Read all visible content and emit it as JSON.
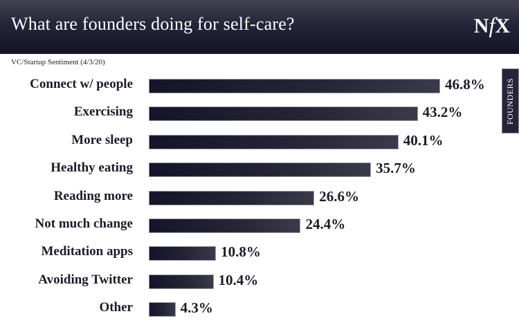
{
  "header": {
    "title": "What are founders doing for self-care?",
    "logo": {
      "n": "N",
      "f": "f",
      "x": "X"
    }
  },
  "subtitle": "VC/Startup Sentiment (4/3/20)",
  "side_tag": "FOUNDERS",
  "colors": {
    "header_dark": "#141428",
    "bar": "#1b1b2e",
    "text": "#1b1b2a"
  },
  "rows": [
    {
      "label": "Connect w/ people",
      "value": "46.8%",
      "num": 46.8
    },
    {
      "label": "Exercising",
      "value": "43.2%",
      "num": 43.2
    },
    {
      "label": "More sleep",
      "value": "40.1%",
      "num": 40.1
    },
    {
      "label": "Healthy eating",
      "value": "35.7%",
      "num": 35.7
    },
    {
      "label": "Reading more",
      "value": "26.6%",
      "num": 26.6
    },
    {
      "label": "Not much change",
      "value": "24.4%",
      "num": 24.4
    },
    {
      "label": "Meditation apps",
      "value": "10.8%",
      "num": 10.8
    },
    {
      "label": "Avoiding Twitter",
      "value": "10.4%",
      "num": 10.4
    },
    {
      "label": "Other",
      "value": "4.3%",
      "num": 4.3
    }
  ],
  "chart_data": {
    "type": "bar",
    "orientation": "horizontal",
    "title": "What are founders doing for self-care?",
    "subtitle": "VC/Startup Sentiment (4/3/20)",
    "categories": [
      "Connect w/ people",
      "Exercising",
      "More sleep",
      "Healthy eating",
      "Reading more",
      "Not much change",
      "Meditation apps",
      "Avoiding Twitter",
      "Other"
    ],
    "values": [
      46.8,
      43.2,
      40.1,
      35.7,
      26.6,
      24.4,
      10.8,
      10.4,
      4.3
    ],
    "value_labels": [
      "46.8%",
      "43.2%",
      "40.1%",
      "35.7%",
      "26.6%",
      "24.4%",
      "10.8%",
      "10.4%",
      "4.3%"
    ],
    "xlabel": "",
    "ylabel": "",
    "unit": "%",
    "grid": false,
    "legend": null,
    "annotations": [
      "FOUNDERS"
    ]
  }
}
